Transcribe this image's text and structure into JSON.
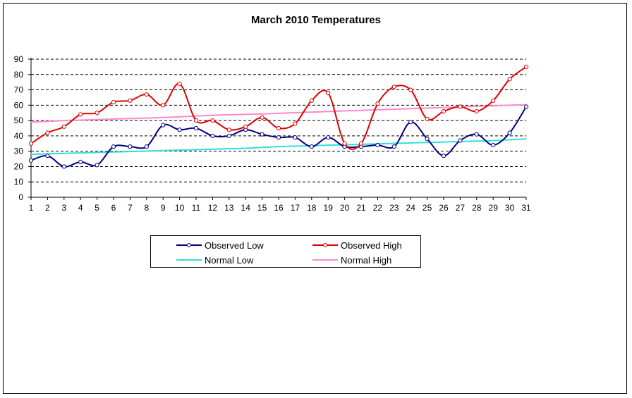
{
  "chart_data": {
    "type": "line",
    "title": "March 2010 Temperatures",
    "xlabel": "",
    "ylabel": "",
    "x": [
      1,
      2,
      3,
      4,
      5,
      6,
      7,
      8,
      9,
      10,
      11,
      12,
      13,
      14,
      15,
      16,
      17,
      18,
      19,
      20,
      21,
      22,
      23,
      24,
      25,
      26,
      27,
      28,
      29,
      30,
      31
    ],
    "ylim": [
      0,
      90
    ],
    "yticks": [
      0,
      10,
      20,
      30,
      40,
      50,
      60,
      70,
      80,
      90
    ],
    "grid": "horizontal dashed",
    "legend_position": "bottom",
    "series": [
      {
        "name": "Observed Low",
        "color": "#000080",
        "markers": true,
        "values": [
          24,
          27,
          20,
          23,
          21,
          33,
          33,
          33,
          47,
          44,
          45,
          40,
          40,
          44,
          41,
          39,
          39,
          33,
          39,
          33,
          33,
          34,
          33,
          49,
          38,
          27,
          37,
          41,
          34,
          42,
          59
        ]
      },
      {
        "name": "Observed High",
        "color": "#dd0000",
        "markers": true,
        "values": [
          35,
          42,
          46,
          54,
          55,
          62,
          63,
          67,
          60,
          74,
          50,
          50,
          44,
          46,
          52,
          45,
          48,
          63,
          68,
          35,
          35,
          61,
          72,
          70,
          51,
          56,
          59,
          56,
          63,
          77,
          85
        ]
      },
      {
        "name": "Normal Low",
        "color": "#33dddd",
        "markers": false,
        "values": [
          28,
          28.3,
          28.6,
          28.9,
          29.2,
          29.5,
          29.8,
          30.1,
          30.4,
          30.7,
          31,
          31.3,
          31.6,
          31.9,
          32.5,
          33,
          33.3,
          33.6,
          33.9,
          34.2,
          34.5,
          34.8,
          35.1,
          35.4,
          35.7,
          36,
          36.3,
          36.6,
          36.9,
          37.5,
          38
        ]
      },
      {
        "name": "Normal High",
        "color": "#ff88cc",
        "markers": false,
        "values": [
          49,
          49.5,
          50,
          50.3,
          50.6,
          51,
          51.3,
          51.6,
          52,
          52.4,
          53,
          53.4,
          53.8,
          54,
          54.3,
          54.7,
          55.1,
          55.5,
          55.9,
          56.3,
          56.6,
          57,
          57.4,
          57.8,
          58.1,
          58.5,
          58.9,
          59.3,
          59.6,
          60,
          60.4
        ]
      }
    ]
  }
}
